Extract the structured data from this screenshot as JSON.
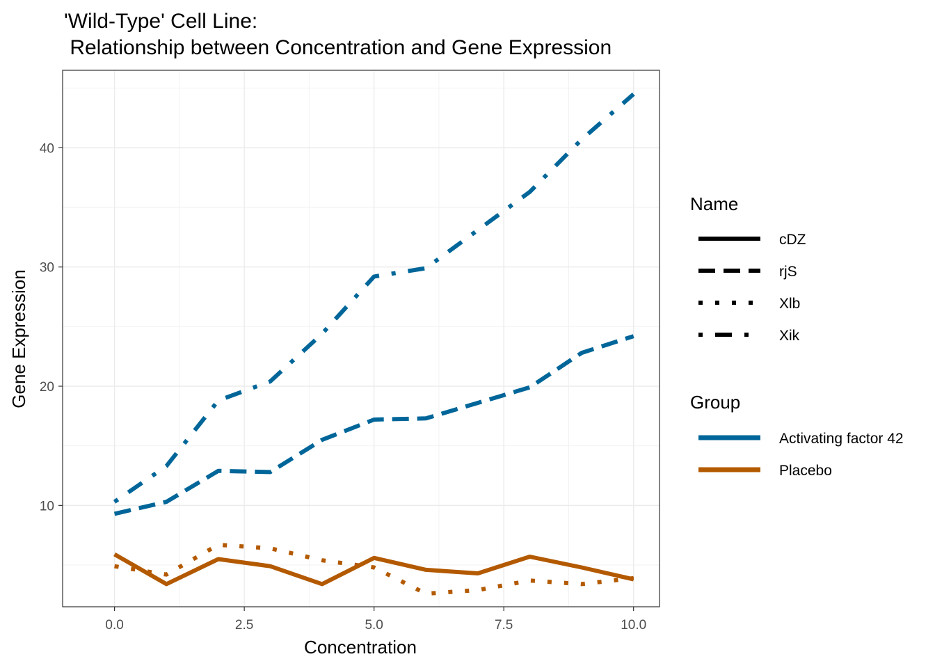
{
  "chart_data": {
    "type": "line",
    "title_line1": "'Wild-Type' Cell Line:",
    "title_line2": " Relationship between Concentration and Gene Expression",
    "xlabel": "Concentration",
    "ylabel": "Gene Expression",
    "xlim": [
      -1,
      10.5
    ],
    "ylim": [
      1.5,
      46.5
    ],
    "x_ticks": [
      0,
      2.5,
      5,
      7.5,
      10
    ],
    "x_tick_labels": [
      "0.0",
      "2.5",
      "5.0",
      "7.5",
      "10.0"
    ],
    "y_ticks": [
      10,
      20,
      30,
      40
    ],
    "y_tick_labels": [
      "10",
      "20",
      "30",
      "40"
    ],
    "grid": true,
    "legend_placement": "right",
    "legends": {
      "name_title": "Name",
      "name_entries": [
        {
          "label": "cDZ",
          "linetype": "solid"
        },
        {
          "label": "rjS",
          "linetype": "dashed"
        },
        {
          "label": "Xlb",
          "linetype": "dotted"
        },
        {
          "label": "Xik",
          "linetype": "dotdash"
        }
      ],
      "group_title": "Group",
      "group_entries": [
        {
          "label": "Activating factor 42",
          "color": "#006699"
        },
        {
          "label": "Placebo",
          "color": "#B35900"
        }
      ]
    },
    "x": [
      0,
      1,
      2,
      3,
      4,
      5,
      6,
      7,
      8,
      9,
      10
    ],
    "series": [
      {
        "name": "cDZ",
        "group": "Placebo",
        "linetype": "solid",
        "color": "#B35900",
        "values": [
          5.9,
          3.4,
          5.5,
          4.9,
          3.4,
          5.6,
          4.6,
          4.3,
          5.7,
          4.8,
          3.8
        ]
      },
      {
        "name": "rjS",
        "group": "Activating factor 42",
        "linetype": "dashed",
        "color": "#006699",
        "values": [
          9.3,
          10.3,
          12.9,
          12.8,
          15.5,
          17.2,
          17.3,
          18.6,
          19.9,
          22.8,
          24.2
        ]
      },
      {
        "name": "Xlb",
        "group": "Placebo",
        "linetype": "dotted",
        "color": "#B35900",
        "values": [
          4.9,
          4.2,
          6.7,
          6.4,
          5.4,
          4.8,
          2.6,
          2.9,
          3.7,
          3.4,
          3.9
        ]
      },
      {
        "name": "Xik",
        "group": "Activating factor 42",
        "linetype": "dotdash",
        "color": "#006699",
        "values": [
          10.3,
          13.3,
          18.8,
          20.4,
          24.4,
          29.2,
          29.9,
          33.1,
          36.3,
          40.7,
          44.5
        ]
      }
    ]
  }
}
